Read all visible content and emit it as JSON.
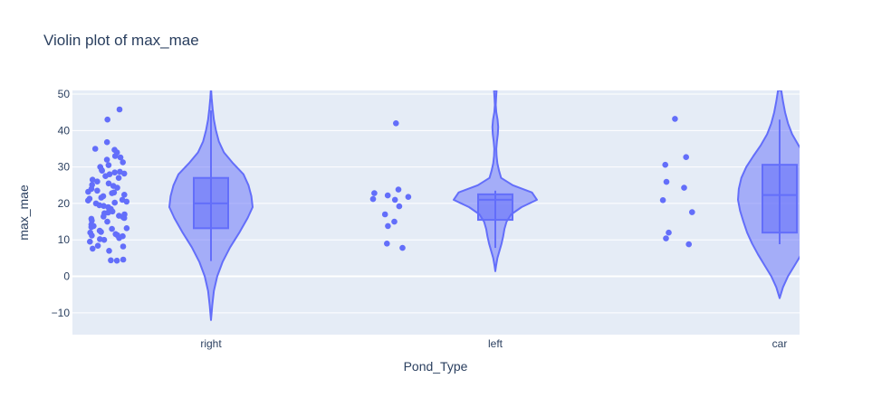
{
  "chart_data": {
    "type": "violin",
    "title": "Violin plot of max_mae",
    "xlabel": "Pond_Type",
    "ylabel": "max_mae",
    "categories": [
      "right",
      "left",
      "car"
    ],
    "ylim": [
      -16,
      51
    ],
    "yticks": [
      -10,
      0,
      10,
      20,
      30,
      40,
      50
    ],
    "grid": true,
    "colors": {
      "marker": "#636efa",
      "plot_bg": "#e5ecf6",
      "grid": "#ffffff",
      "text": "#2a3f5f"
    },
    "series": [
      {
        "category": "right",
        "box": {
          "q1": 13.2,
          "median": 20.0,
          "q3": 27.0,
          "lowerfence": 4.2,
          "upperfence": 45.5
        },
        "violin_range": [
          -12.0,
          51.0
        ],
        "density": [
          [
            -12,
            0
          ],
          [
            -8,
            0.03
          ],
          [
            -4,
            0.07
          ],
          [
            0,
            0.15
          ],
          [
            4,
            0.28
          ],
          [
            8,
            0.46
          ],
          [
            12,
            0.68
          ],
          [
            16,
            0.88
          ],
          [
            19,
            1.0
          ],
          [
            22,
            0.97
          ],
          [
            25,
            0.9
          ],
          [
            28,
            0.78
          ],
          [
            31,
            0.53
          ],
          [
            34,
            0.31
          ],
          [
            37,
            0.19
          ],
          [
            40,
            0.12
          ],
          [
            43,
            0.07
          ],
          [
            46,
            0.04
          ],
          [
            49,
            0.015
          ],
          [
            51,
            0.005
          ]
        ],
        "points": [
          4.3,
          4.4,
          4.6,
          7.0,
          7.6,
          8.2,
          8.4,
          9.5,
          10.0,
          10.2,
          10.5,
          11.0,
          11.2,
          11.3,
          11.6,
          12.0,
          12.2,
          12.5,
          13.0,
          13.2,
          13.5,
          13.8,
          14.2,
          15.0,
          15.3,
          15.8,
          16.0,
          16.2,
          16.4,
          16.6,
          17.0,
          17.3,
          17.5,
          17.8,
          18.5,
          19.0,
          19.3,
          19.5,
          20.0,
          20.2,
          20.5,
          20.8,
          21.0,
          21.3,
          21.6,
          22.0,
          22.4,
          22.8,
          23.0,
          23.2,
          23.5,
          24.0,
          24.3,
          24.8,
          25.1,
          25.5,
          26.0,
          26.5,
          27.0,
          27.5,
          28.0,
          28.2,
          28.5,
          28.7,
          29.0,
          29.2,
          30.0,
          30.5,
          31.3,
          32.0,
          32.6,
          33.0,
          34.0,
          34.7,
          35.0,
          36.8,
          43.0,
          45.8
        ]
      },
      {
        "category": "left",
        "box": {
          "q1": 15.5,
          "median": 21.0,
          "q3": 22.5,
          "lowerfence": 7.8,
          "upperfence": 23.5
        },
        "violin_range": [
          1.4,
          51.0
        ],
        "density": [
          [
            1.4,
            0
          ],
          [
            3,
            0.02
          ],
          [
            5,
            0.05
          ],
          [
            7,
            0.1
          ],
          [
            9,
            0.15
          ],
          [
            11,
            0.19
          ],
          [
            13,
            0.22
          ],
          [
            15,
            0.27
          ],
          [
            17,
            0.38
          ],
          [
            19,
            0.63
          ],
          [
            21,
            1.0
          ],
          [
            23,
            0.88
          ],
          [
            25,
            0.42
          ],
          [
            27,
            0.14
          ],
          [
            29,
            0.09
          ],
          [
            31,
            0.05
          ],
          [
            33,
            0.03
          ],
          [
            35,
            0.025
          ],
          [
            37,
            0.04
          ],
          [
            39,
            0.06
          ],
          [
            41,
            0.07
          ],
          [
            43,
            0.055
          ],
          [
            45,
            0.025
          ],
          [
            47,
            0.01
          ],
          [
            49,
            0.02
          ],
          [
            51,
            0.03
          ]
        ],
        "points": [
          42.0,
          23.8,
          22.8,
          22.2,
          21.8,
          21.2,
          21.0,
          19.2,
          17.0,
          15.0,
          13.8,
          9.0,
          7.8
        ]
      },
      {
        "category": "car",
        "box": {
          "q1": 12.0,
          "median": 22.3,
          "q3": 30.6,
          "lowerfence": 8.8,
          "upperfence": 43.0
        },
        "violin_range": [
          -6.0,
          51.0
        ],
        "density": [
          [
            -6,
            0
          ],
          [
            -3,
            0.08
          ],
          [
            0,
            0.2
          ],
          [
            3,
            0.36
          ],
          [
            6,
            0.52
          ],
          [
            9,
            0.66
          ],
          [
            12,
            0.78
          ],
          [
            15,
            0.87
          ],
          [
            18,
            0.95
          ],
          [
            21,
            1.0
          ],
          [
            24,
            0.98
          ],
          [
            27,
            0.92
          ],
          [
            30,
            0.8
          ],
          [
            33,
            0.63
          ],
          [
            36,
            0.45
          ],
          [
            39,
            0.3
          ],
          [
            42,
            0.2
          ],
          [
            45,
            0.13
          ],
          [
            48,
            0.08
          ],
          [
            51,
            0.04
          ]
        ],
        "points": [
          43.2,
          32.7,
          30.6,
          25.9,
          24.3,
          20.9,
          17.6,
          12.0,
          10.4,
          8.8
        ]
      }
    ]
  }
}
